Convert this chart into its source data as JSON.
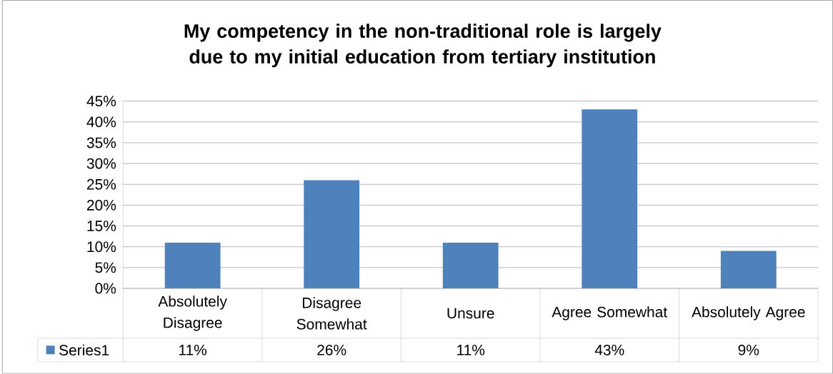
{
  "chart_data": {
    "type": "bar",
    "title": "My competency in the non-traditional role is largely due to my initial education from tertiary institution",
    "categories": [
      "Absolutely Disagree",
      "Disagree Somewhat",
      "Unsure",
      "Agree Somewhat",
      "Absolutely Agree"
    ],
    "series": [
      {
        "name": "Series1",
        "color": "#4f81bd",
        "values": [
          11,
          26,
          11,
          43,
          9
        ],
        "value_labels": [
          "11%",
          "26%",
          "11%",
          "43%",
          "9%"
        ]
      }
    ],
    "ylim": [
      0,
      45
    ],
    "yticks": [
      {
        "value": 0,
        "label": "0%"
      },
      {
        "value": 5,
        "label": "5%"
      },
      {
        "value": 10,
        "label": "10%"
      },
      {
        "value": 15,
        "label": "15%"
      },
      {
        "value": 20,
        "label": "20%"
      },
      {
        "value": 25,
        "label": "25%"
      },
      {
        "value": 30,
        "label": "30%"
      },
      {
        "value": 35,
        "label": "35%"
      },
      {
        "value": 40,
        "label": "40%"
      },
      {
        "value": 45,
        "label": "45%"
      }
    ],
    "grid": "y"
  }
}
